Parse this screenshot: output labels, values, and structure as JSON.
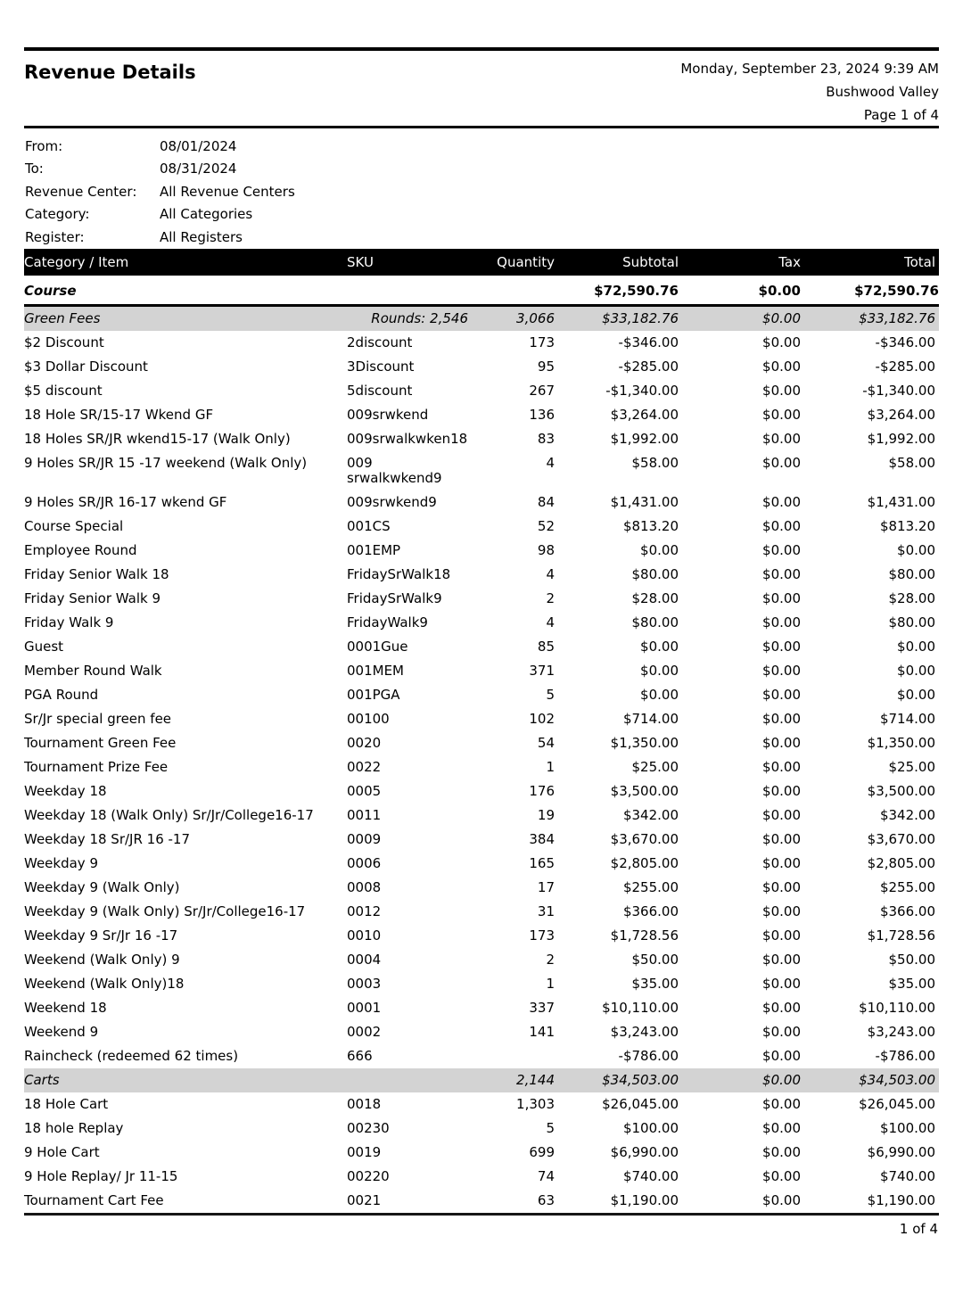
{
  "colors": {
    "header_bar": "#000000",
    "band": "#d3d3d3",
    "rule": "#000000",
    "text": "#000000",
    "page_bg": "#ffffff"
  },
  "page": {
    "title": "Revenue Details",
    "generated": "Monday, September 23, 2024 9:39 AM",
    "facility": "Bushwood Valley",
    "page_label": "Page 1 of 4",
    "footer_page": "1 of 4"
  },
  "filters": [
    {
      "label": "From:",
      "value": "08/01/2024"
    },
    {
      "label": "To:",
      "value": "08/31/2024"
    },
    {
      "label": "Revenue Center:",
      "value": "All Revenue Centers"
    },
    {
      "label": "Category:",
      "value": "All Categories"
    },
    {
      "label": "Register:",
      "value": "All Registers"
    }
  ],
  "table": {
    "columns": [
      "Category / Item",
      "SKU",
      "Quantity",
      "Subtotal",
      "Tax",
      "Total"
    ],
    "rows": [
      {
        "type": "category",
        "item": "Course",
        "sku": "",
        "qty": "",
        "subtotal": "$72,590.76",
        "tax": "$0.00",
        "total": "$72,590.76"
      },
      {
        "type": "subcategory",
        "item": "Green Fees",
        "sku": "Rounds: 2,546",
        "qty": "3,066",
        "subtotal": "$33,182.76",
        "tax": "$0.00",
        "total": "$33,182.76"
      },
      {
        "type": "item",
        "item": "$2 Discount",
        "sku": "2discount",
        "qty": "173",
        "subtotal": "-$346.00",
        "tax": "$0.00",
        "total": "-$346.00"
      },
      {
        "type": "item",
        "item": "$3 Dollar Discount",
        "sku": "3Discount",
        "qty": "95",
        "subtotal": "-$285.00",
        "tax": "$0.00",
        "total": "-$285.00"
      },
      {
        "type": "item",
        "item": "$5 discount",
        "sku": "5discount",
        "qty": "267",
        "subtotal": "-$1,340.00",
        "tax": "$0.00",
        "total": "-$1,340.00"
      },
      {
        "type": "item",
        "item": "18 Hole SR/15-17 Wkend GF",
        "sku": "009srwkend",
        "qty": "136",
        "subtotal": "$3,264.00",
        "tax": "$0.00",
        "total": "$3,264.00"
      },
      {
        "type": "item",
        "item": "18 Holes SR/JR wkend15-17 (Walk Only)",
        "sku": "009srwalkwken18",
        "qty": "83",
        "subtotal": "$1,992.00",
        "tax": "$0.00",
        "total": "$1,992.00"
      },
      {
        "type": "item",
        "item": "9 Holes SR/JR 15 -17 weekend (Walk Only)",
        "sku": "009\nsrwalkwkend9",
        "qty": "4",
        "subtotal": "$58.00",
        "tax": "$0.00",
        "total": "$58.00"
      },
      {
        "type": "item",
        "item": "9 Holes SR/JR 16-17 wkend GF",
        "sku": "009srwkend9",
        "qty": "84",
        "subtotal": "$1,431.00",
        "tax": "$0.00",
        "total": "$1,431.00"
      },
      {
        "type": "item",
        "item": "Course Special",
        "sku": "001CS",
        "qty": "52",
        "subtotal": "$813.20",
        "tax": "$0.00",
        "total": "$813.20"
      },
      {
        "type": "item",
        "item": "Employee Round",
        "sku": "001EMP",
        "qty": "98",
        "subtotal": "$0.00",
        "tax": "$0.00",
        "total": "$0.00"
      },
      {
        "type": "item",
        "item": "Friday Senior Walk 18",
        "sku": "FridaySrWalk18",
        "qty": "4",
        "subtotal": "$80.00",
        "tax": "$0.00",
        "total": "$80.00"
      },
      {
        "type": "item",
        "item": "Friday Senior Walk 9",
        "sku": "FridaySrWalk9",
        "qty": "2",
        "subtotal": "$28.00",
        "tax": "$0.00",
        "total": "$28.00"
      },
      {
        "type": "item",
        "item": "Friday Walk 9",
        "sku": "FridayWalk9",
        "qty": "4",
        "subtotal": "$80.00",
        "tax": "$0.00",
        "total": "$80.00"
      },
      {
        "type": "item",
        "item": "Guest",
        "sku": "0001Gue",
        "qty": "85",
        "subtotal": "$0.00",
        "tax": "$0.00",
        "total": "$0.00"
      },
      {
        "type": "item",
        "item": "Member Round Walk",
        "sku": "001MEM",
        "qty": "371",
        "subtotal": "$0.00",
        "tax": "$0.00",
        "total": "$0.00"
      },
      {
        "type": "item",
        "item": "PGA Round",
        "sku": "001PGA",
        "qty": "5",
        "subtotal": "$0.00",
        "tax": "$0.00",
        "total": "$0.00"
      },
      {
        "type": "item",
        "item": "Sr/Jr special green fee",
        "sku": "00100",
        "qty": "102",
        "subtotal": "$714.00",
        "tax": "$0.00",
        "total": "$714.00"
      },
      {
        "type": "item",
        "item": "Tournament Green Fee",
        "sku": "0020",
        "qty": "54",
        "subtotal": "$1,350.00",
        "tax": "$0.00",
        "total": "$1,350.00"
      },
      {
        "type": "item",
        "item": "Tournament Prize Fee",
        "sku": "0022",
        "qty": "1",
        "subtotal": "$25.00",
        "tax": "$0.00",
        "total": "$25.00"
      },
      {
        "type": "item",
        "item": "Weekday 18",
        "sku": "0005",
        "qty": "176",
        "subtotal": "$3,500.00",
        "tax": "$0.00",
        "total": "$3,500.00"
      },
      {
        "type": "item",
        "item": "Weekday 18 (Walk Only) Sr/Jr/College16-17",
        "sku": "0011",
        "qty": "19",
        "subtotal": "$342.00",
        "tax": "$0.00",
        "total": "$342.00"
      },
      {
        "type": "item",
        "item": "Weekday 18 Sr/JR 16 -17",
        "sku": "0009",
        "qty": "384",
        "subtotal": "$3,670.00",
        "tax": "$0.00",
        "total": "$3,670.00"
      },
      {
        "type": "item",
        "item": "Weekday 9",
        "sku": "0006",
        "qty": "165",
        "subtotal": "$2,805.00",
        "tax": "$0.00",
        "total": "$2,805.00"
      },
      {
        "type": "item",
        "item": "Weekday 9 (Walk Only)",
        "sku": "0008",
        "qty": "17",
        "subtotal": "$255.00",
        "tax": "$0.00",
        "total": "$255.00"
      },
      {
        "type": "item",
        "item": "Weekday 9 (Walk Only) Sr/Jr/College16-17",
        "sku": "0012",
        "qty": "31",
        "subtotal": "$366.00",
        "tax": "$0.00",
        "total": "$366.00"
      },
      {
        "type": "item",
        "item": "Weekday 9 Sr/Jr 16 -17",
        "sku": "0010",
        "qty": "173",
        "subtotal": "$1,728.56",
        "tax": "$0.00",
        "total": "$1,728.56"
      },
      {
        "type": "item",
        "item": "Weekend (Walk Only) 9",
        "sku": "0004",
        "qty": "2",
        "subtotal": "$50.00",
        "tax": "$0.00",
        "total": "$50.00"
      },
      {
        "type": "item",
        "item": "Weekend (Walk Only)18",
        "sku": "0003",
        "qty": "1",
        "subtotal": "$35.00",
        "tax": "$0.00",
        "total": "$35.00"
      },
      {
        "type": "item",
        "item": "Weekend 18",
        "sku": "0001",
        "qty": "337",
        "subtotal": "$10,110.00",
        "tax": "$0.00",
        "total": "$10,110.00"
      },
      {
        "type": "item",
        "item": "Weekend 9",
        "sku": "0002",
        "qty": "141",
        "subtotal": "$3,243.00",
        "tax": "$0.00",
        "total": "$3,243.00"
      },
      {
        "type": "item",
        "item": "Raincheck (redeemed 62 times)",
        "sku": "666",
        "qty": "",
        "subtotal": "-$786.00",
        "tax": "$0.00",
        "total": "-$786.00"
      },
      {
        "type": "subcategory",
        "item": "Carts",
        "sku": "",
        "qty": "2,144",
        "subtotal": "$34,503.00",
        "tax": "$0.00",
        "total": "$34,503.00"
      },
      {
        "type": "item",
        "item": "18 Hole Cart",
        "sku": "0018",
        "qty": "1,303",
        "subtotal": "$26,045.00",
        "tax": "$0.00",
        "total": "$26,045.00"
      },
      {
        "type": "item",
        "item": "18 hole Replay",
        "sku": "00230",
        "qty": "5",
        "subtotal": "$100.00",
        "tax": "$0.00",
        "total": "$100.00"
      },
      {
        "type": "item",
        "item": "9 Hole Cart",
        "sku": "0019",
        "qty": "699",
        "subtotal": "$6,990.00",
        "tax": "$0.00",
        "total": "$6,990.00"
      },
      {
        "type": "item",
        "item": "9 Hole Replay/ Jr 11-15",
        "sku": "00220",
        "qty": "74",
        "subtotal": "$740.00",
        "tax": "$0.00",
        "total": "$740.00"
      },
      {
        "type": "item",
        "item": "Tournament Cart Fee",
        "sku": "0021",
        "qty": "63",
        "subtotal": "$1,190.00",
        "tax": "$0.00",
        "total": "$1,190.00"
      }
    ]
  }
}
